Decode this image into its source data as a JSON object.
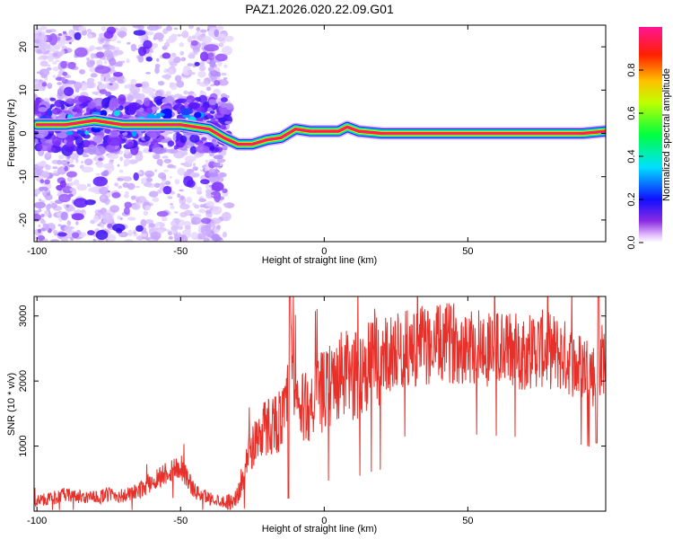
{
  "chart_data": [
    {
      "type": "heatmap",
      "title": "PAZ1.2026.020.22.09.G01",
      "xlabel": "Height of straight line (km)",
      "ylabel": "Frequency (Hz)",
      "xlim": [
        -101,
        98
      ],
      "ylim": [
        -25,
        25
      ],
      "xticks": [
        "-100",
        "-50",
        "0",
        "50"
      ],
      "yticks": [
        "20",
        "10",
        "0",
        "-10",
        "-20"
      ],
      "colorbar": {
        "label": "Normalized spectral amplitude",
        "range": [
          0,
          1
        ],
        "ticks": [
          "0.0",
          "0.2",
          "0.4",
          "0.6",
          "0.8"
        ]
      },
      "ridge": [
        {
          "x": -100,
          "y": 2
        },
        {
          "x": -90,
          "y": 2
        },
        {
          "x": -80,
          "y": 3
        },
        {
          "x": -70,
          "y": 2
        },
        {
          "x": -60,
          "y": 2
        },
        {
          "x": -50,
          "y": 2
        },
        {
          "x": -40,
          "y": 1
        },
        {
          "x": -35,
          "y": -1
        },
        {
          "x": -30,
          "y": -2.5
        },
        {
          "x": -25,
          "y": -2.5
        },
        {
          "x": -20,
          "y": -1.5
        },
        {
          "x": -15,
          "y": -1
        },
        {
          "x": -10,
          "y": 1
        },
        {
          "x": -5,
          "y": 0.5
        },
        {
          "x": 0,
          "y": 0.5
        },
        {
          "x": 5,
          "y": 0.5
        },
        {
          "x": 8,
          "y": 1.5
        },
        {
          "x": 12,
          "y": 0.5
        },
        {
          "x": 20,
          "y": 0
        },
        {
          "x": 50,
          "y": 0
        },
        {
          "x": 90,
          "y": 0
        },
        {
          "x": 98,
          "y": 0.5
        }
      ]
    },
    {
      "type": "line",
      "title": "",
      "xlabel": "Height of straight line (km)",
      "ylabel": "SNR (10 * v/v)",
      "xlim": [
        -101,
        98
      ],
      "ylim": [
        0,
        3300
      ],
      "xticks": [
        "-100",
        "-50",
        "0",
        "50"
      ],
      "yticks": [
        "3000",
        "2000",
        "1000"
      ],
      "series": [
        {
          "name": "SNR",
          "color": "#e8302a",
          "x": [
            -101,
            -95,
            -90,
            -85,
            -80,
            -75,
            -70,
            -65,
            -60,
            -55,
            -50,
            -45,
            -40,
            -35,
            -32,
            -30,
            -28,
            -25,
            -22,
            -20,
            -18,
            -15,
            -13,
            -12,
            -10,
            -8,
            -5,
            -3,
            0,
            3,
            5,
            8,
            10,
            12,
            15,
            18,
            20,
            25,
            30,
            35,
            40,
            45,
            50,
            55,
            60,
            65,
            70,
            75,
            80,
            85,
            88,
            90,
            93,
            95,
            96,
            98
          ],
          "values": [
            150,
            200,
            250,
            220,
            200,
            260,
            230,
            300,
            450,
            600,
            700,
            300,
            200,
            150,
            150,
            250,
            600,
            1000,
            1250,
            1300,
            1350,
            1400,
            1550,
            2400,
            1700,
            1550,
            1650,
            1750,
            1850,
            1950,
            2050,
            2100,
            2050,
            2100,
            2250,
            2350,
            2400,
            2450,
            2500,
            2550,
            2550,
            2600,
            2560,
            2520,
            2500,
            2480,
            2450,
            2500,
            2450,
            2350,
            2200,
            2250,
            2150,
            2000,
            2300,
            2400
          ]
        }
      ]
    }
  ]
}
